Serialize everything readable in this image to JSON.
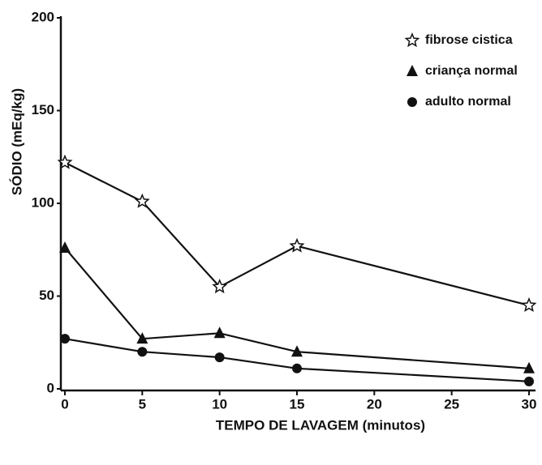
{
  "chart_data": {
    "type": "line",
    "xlabel": "TEMPO DE LAVAGEM (minutos)",
    "ylabel": "SÓDIO (mEq/kg)",
    "x": [
      0,
      5,
      10,
      15,
      30
    ],
    "series": [
      {
        "name": "fibrose cistica",
        "color": "#111111",
        "marker": "star",
        "values": [
          122,
          101,
          55,
          77,
          45
        ]
      },
      {
        "name": "criança normal",
        "color": "#111111",
        "marker": "triangle",
        "values": [
          76,
          27,
          30,
          20,
          11
        ]
      },
      {
        "name": "adulto normal",
        "color": "#111111",
        "marker": "circle",
        "values": [
          27,
          20,
          17,
          11,
          4
        ]
      }
    ],
    "xlim": [
      0,
      30
    ],
    "xticks": [
      0,
      5,
      10,
      15,
      20,
      25,
      30
    ],
    "ylim": [
      0,
      200
    ],
    "yticks": [
      0,
      50,
      100,
      150,
      200
    ],
    "legend": "upper right",
    "grid": false
  }
}
